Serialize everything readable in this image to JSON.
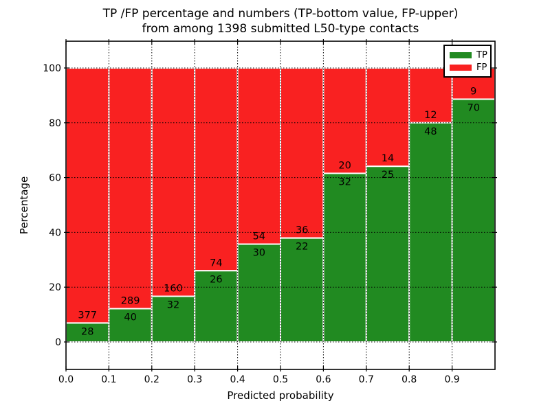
{
  "title": {
    "line1": "TP /FP percentage and numbers (TP-bottom value, FP-upper)",
    "line2": "from among 1398 submitted L50-type contacts"
  },
  "legend": {
    "position": "upper right",
    "items": [
      {
        "label": "TP",
        "color": "#218a21"
      },
      {
        "label": "FP",
        "color": "#f92121"
      }
    ]
  },
  "chart_data": {
    "type": "bar",
    "stacked": true,
    "normalized": "each bar scaled to 100%",
    "title": "TP /FP percentage and numbers (TP-bottom value, FP-upper) from among 1398 submitted L50-type contacts",
    "xlabel": "Predicted probability",
    "ylabel": "Percentage",
    "x": [
      "0.0",
      "0.1",
      "0.2",
      "0.3",
      "0.4",
      "0.5",
      "0.6",
      "0.7",
      "0.8",
      "0.9"
    ],
    "bin_width": 0.1,
    "xlim": [
      0.0,
      1.0
    ],
    "ylim": [
      -10,
      110
    ],
    "yticks": [
      0,
      20,
      40,
      60,
      80,
      100
    ],
    "grid": "dotted, black, both axes",
    "bar_edge_color": "#ffffff",
    "series": [
      {
        "name": "TP",
        "color": "#218a21",
        "counts": [
          28,
          40,
          32,
          26,
          30,
          22,
          32,
          25,
          48,
          70
        ]
      },
      {
        "name": "FP",
        "color": "#f92121",
        "counts": [
          377,
          289,
          160,
          74,
          54,
          36,
          20,
          14,
          12,
          9
        ]
      }
    ],
    "tp_percent": [
      6.9,
      12.2,
      16.7,
      26.0,
      35.7,
      37.9,
      61.5,
      64.1,
      80.0,
      88.6
    ],
    "total_contacts": 1398
  }
}
